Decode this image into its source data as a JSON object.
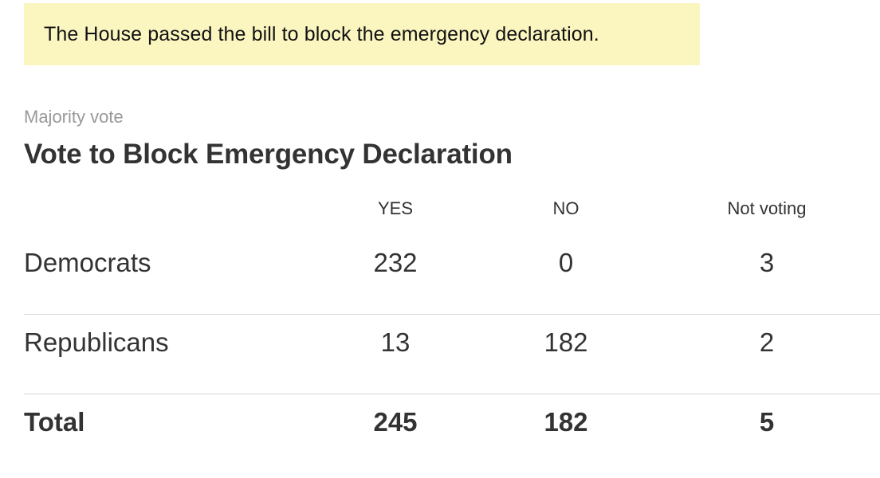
{
  "banner": {
    "text": "The House passed the bill to block the emergency declaration.",
    "background": "#fbf6c0"
  },
  "kicker": "Majority vote",
  "title": "Vote to Block Emergency Declaration",
  "table": {
    "columns": [
      "YES",
      "NO",
      "Not voting"
    ],
    "rows": [
      {
        "party": "Democrats",
        "yes": "232",
        "no": "0",
        "not_voting": "3"
      },
      {
        "party": "Republicans",
        "yes": "13",
        "no": "182",
        "not_voting": "2"
      }
    ],
    "total": {
      "label": "Total",
      "yes": "245",
      "no": "182",
      "not_voting": "5"
    }
  }
}
